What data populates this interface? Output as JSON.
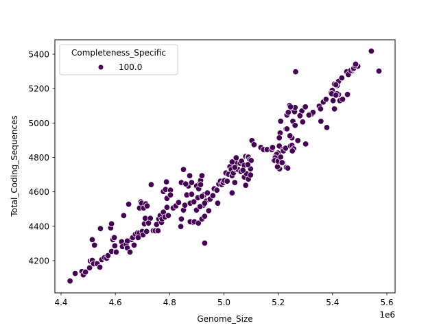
{
  "chart_data": {
    "type": "scatter",
    "title": "",
    "xlabel": "Genome_Size",
    "ylabel": "Total_Coding_Sequences",
    "x_offset_label": "1e6",
    "xlim": [
      4.38,
      5.63
    ],
    "ylim": [
      4065,
      5470
    ],
    "x_ticks": [
      4.4,
      4.6,
      4.8,
      5.0,
      5.2,
      5.4,
      5.6
    ],
    "x_tick_labels": [
      "4.4",
      "4.6",
      "4.8",
      "5.0",
      "5.2",
      "5.4",
      "5.6"
    ],
    "y_ticks": [
      4200,
      4400,
      4600,
      4800,
      5000,
      5200,
      5400
    ],
    "y_tick_labels": [
      "4200",
      "4400",
      "4600",
      "4800",
      "5000",
      "5200",
      "5400"
    ],
    "grid": false,
    "legend": {
      "title": "Completeness_Specific",
      "position": "upper left",
      "entries": [
        {
          "label": "100.0",
          "color": "#440154"
        }
      ]
    },
    "point_color": "#440154",
    "point_edge_color": "#ffffff",
    "series": [
      {
        "name": "100.0",
        "points": [
          [
            4.433,
            4082
          ],
          [
            4.452,
            4126
          ],
          [
            4.477,
            4137
          ],
          [
            4.482,
            4118
          ],
          [
            4.49,
            4134
          ],
          [
            4.505,
            4158
          ],
          [
            4.508,
            4198
          ],
          [
            4.515,
            4202
          ],
          [
            4.52,
            4182
          ],
          [
            4.533,
            4182
          ],
          [
            4.543,
            4162
          ],
          [
            4.515,
            4322
          ],
          [
            4.523,
            4290
          ],
          [
            4.545,
            4386
          ],
          [
            4.55,
            4206
          ],
          [
            4.56,
            4218
          ],
          [
            4.568,
            4214
          ],
          [
            4.573,
            4230
          ],
          [
            4.583,
            4390
          ],
          [
            4.586,
            4414
          ],
          [
            4.586,
            4254
          ],
          [
            4.591,
            4322
          ],
          [
            4.596,
            4334
          ],
          [
            4.598,
            4286
          ],
          [
            4.603,
            4250
          ],
          [
            4.623,
            4310
          ],
          [
            4.626,
            4282
          ],
          [
            4.631,
            4462
          ],
          [
            4.639,
            4294
          ],
          [
            4.644,
            4274
          ],
          [
            4.649,
            4528
          ],
          [
            4.654,
            4250
          ],
          [
            4.659,
            4322
          ],
          [
            4.664,
            4334
          ],
          [
            4.674,
            4354
          ],
          [
            4.682,
            4362
          ],
          [
            4.689,
            4506
          ],
          [
            4.689,
            4362
          ],
          [
            4.699,
            4370
          ],
          [
            4.702,
            4350
          ],
          [
            4.707,
            4414
          ],
          [
            4.71,
            4446
          ],
          [
            4.644,
            4314
          ],
          [
            4.669,
            4290
          ],
          [
            4.684,
            4334
          ],
          [
            4.694,
            4542
          ],
          [
            4.697,
            4534
          ],
          [
            4.704,
            4506
          ],
          [
            4.712,
            4530
          ],
          [
            4.717,
            4518
          ],
          [
            4.715,
            4370
          ],
          [
            4.729,
            4446
          ],
          [
            4.722,
            4418
          ],
          [
            4.732,
            4642
          ],
          [
            4.74,
            4374
          ],
          [
            4.747,
            4374
          ],
          [
            4.757,
            4374
          ],
          [
            4.752,
            4410
          ],
          [
            4.76,
            4442
          ],
          [
            4.765,
            4462
          ],
          [
            4.77,
            4422
          ],
          [
            4.772,
            4442
          ],
          [
            4.777,
            4482
          ],
          [
            4.783,
            4454
          ],
          [
            4.79,
            4510
          ],
          [
            4.795,
            4462
          ],
          [
            4.777,
            4602
          ],
          [
            4.785,
            4614
          ],
          [
            4.79,
            4562
          ],
          [
            4.788,
            4658
          ],
          [
            4.803,
            4610
          ],
          [
            4.803,
            4582
          ],
          [
            4.813,
            4506
          ],
          [
            4.823,
            4518
          ],
          [
            4.833,
            4538
          ],
          [
            4.843,
            4442
          ],
          [
            4.841,
            4398
          ],
          [
            4.843,
            4654
          ],
          [
            4.851,
            4494
          ],
          [
            4.856,
            4522
          ],
          [
            4.851,
            4730
          ],
          [
            4.863,
            4582
          ],
          [
            4.869,
            4634
          ],
          [
            4.874,
            4694
          ],
          [
            4.876,
            4534
          ],
          [
            4.881,
            4586
          ],
          [
            4.886,
            4422
          ],
          [
            4.876,
            4426
          ],
          [
            4.889,
            4542
          ],
          [
            4.899,
            4494
          ],
          [
            4.904,
            4566
          ],
          [
            4.909,
            4646
          ],
          [
            4.914,
            4666
          ],
          [
            4.919,
            4694
          ],
          [
            4.924,
            4522
          ],
          [
            4.929,
            4302
          ],
          [
            4.926,
            4582
          ],
          [
            4.934,
            4550
          ],
          [
            4.891,
            4426
          ],
          [
            4.906,
            4418
          ],
          [
            4.912,
            4514
          ],
          [
            4.919,
            4442
          ],
          [
            4.929,
            4458
          ],
          [
            4.934,
            4546
          ],
          [
            4.944,
            4490
          ],
          [
            4.859,
            4646
          ],
          [
            4.881,
            4654
          ],
          [
            4.899,
            4634
          ],
          [
            4.907,
            4618
          ],
          [
            4.914,
            4642
          ],
          [
            4.929,
            4534
          ],
          [
            4.919,
            4574
          ],
          [
            4.939,
            4594
          ],
          [
            4.949,
            4558
          ],
          [
            4.959,
            4578
          ],
          [
            4.964,
            4618
          ],
          [
            4.977,
            4534
          ],
          [
            4.974,
            4610
          ],
          [
            4.981,
            4646
          ],
          [
            4.987,
            4662
          ],
          [
            4.992,
            4642
          ],
          [
            4.997,
            4654
          ],
          [
            5.002,
            4666
          ],
          [
            5.007,
            4710
          ],
          [
            5.012,
            4662
          ],
          [
            5.017,
            4702
          ],
          [
            5.022,
            4746
          ],
          [
            5.027,
            4730
          ],
          [
            5.03,
            4694
          ],
          [
            5.03,
            4594
          ],
          [
            5.035,
            4710
          ],
          [
            5.04,
            4754
          ],
          [
            5.04,
            4654
          ],
          [
            5.045,
            4730
          ],
          [
            5.05,
            4766
          ],
          [
            5.052,
            4730
          ],
          [
            5.06,
            4766
          ],
          [
            5.063,
            4718
          ],
          [
            5.065,
            4778
          ],
          [
            5.075,
            4754
          ],
          [
            5.08,
            4806
          ],
          [
            5.088,
            4802
          ],
          [
            5.09,
            4802
          ],
          [
            5.095,
            4786
          ],
          [
            5.1,
            4782
          ],
          [
            5.103,
            4898
          ],
          [
            5.111,
            4874
          ],
          [
            5.136,
            4858
          ],
          [
            5.146,
            4846
          ],
          [
            5.159,
            4846
          ],
          [
            5.176,
            4846
          ],
          [
            5.184,
            4782
          ],
          [
            5.189,
            4806
          ],
          [
            5.199,
            4826
          ],
          [
            5.205,
            4734
          ],
          [
            5.08,
            4638
          ],
          [
            5.075,
            4686
          ],
          [
            5.083,
            4706
          ],
          [
            5.09,
            4674
          ],
          [
            5.098,
            4698
          ],
          [
            5.098,
            4734
          ],
          [
            5.088,
            4758
          ],
          [
            5.045,
            4798
          ],
          [
            5.03,
            4774
          ],
          [
            5.04,
            4742
          ],
          [
            5.07,
            4726
          ],
          [
            5.179,
            4858
          ],
          [
            5.194,
            4818
          ],
          [
            5.189,
            4798
          ],
          [
            5.204,
            4866
          ],
          [
            5.217,
            4846
          ],
          [
            5.219,
            4838
          ],
          [
            5.227,
            4854
          ],
          [
            5.245,
            4866
          ],
          [
            5.25,
            4870
          ],
          [
            5.257,
            4850
          ],
          [
            5.252,
            4838
          ],
          [
            5.25,
            4914
          ],
          [
            5.243,
            4926
          ],
          [
            5.272,
            4898
          ],
          [
            5.217,
            4770
          ],
          [
            5.187,
            4782
          ],
          [
            5.197,
            4746
          ],
          [
            5.199,
            4778
          ],
          [
            5.209,
            4802
          ],
          [
            5.214,
            4770
          ],
          [
            5.23,
            4742
          ],
          [
            5.235,
            4738
          ],
          [
            5.207,
            4942
          ],
          [
            5.229,
            4966
          ],
          [
            5.232,
            4966
          ],
          [
            5.204,
            4914
          ],
          [
            5.254,
            5010
          ],
          [
            5.262,
            4986
          ],
          [
            5.25,
            5082
          ],
          [
            5.29,
            5006
          ],
          [
            5.301,
            4878
          ],
          [
            5.325,
            5054
          ],
          [
            5.328,
            5062
          ],
          [
            5.351,
            5098
          ],
          [
            5.356,
            5082
          ],
          [
            5.366,
            5122
          ],
          [
            5.376,
            5138
          ],
          [
            5.379,
            4974
          ],
          [
            5.399,
            5190
          ],
          [
            5.409,
            5226
          ],
          [
            5.417,
            5218
          ],
          [
            5.422,
            5242
          ],
          [
            5.434,
            5262
          ],
          [
            5.452,
            5298
          ],
          [
            5.47,
            5302
          ],
          [
            5.458,
            5282
          ],
          [
            5.422,
            5166
          ],
          [
            5.467,
            5306
          ],
          [
            5.475,
            5314
          ],
          [
            5.478,
            5318
          ],
          [
            5.407,
            5226
          ],
          [
            5.394,
            5174
          ],
          [
            5.412,
            5222
          ],
          [
            5.416,
            5170
          ],
          [
            5.397,
            5170
          ],
          [
            5.407,
            5082
          ],
          [
            5.357,
            5010
          ],
          [
            5.427,
            5130
          ],
          [
            5.437,
            5138
          ],
          [
            5.412,
            5162
          ],
          [
            5.402,
            5130
          ],
          [
            5.455,
            5166
          ],
          [
            5.493,
            5330
          ],
          [
            5.543,
            5418
          ],
          [
            5.571,
            5302
          ],
          [
            5.483,
            5334
          ],
          [
            5.485,
            5342
          ],
          [
            5.264,
            5298
          ],
          [
            5.209,
            5010
          ],
          [
            5.232,
            5046
          ],
          [
            5.26,
            5066
          ],
          [
            5.262,
            5090
          ],
          [
            5.287,
            5070
          ],
          [
            5.3,
            5094
          ],
          [
            5.313,
            5046
          ],
          [
            5.237,
            5062
          ],
          [
            5.242,
            5102
          ],
          [
            5.245,
            5094
          ],
          [
            5.28,
            5042
          ]
        ]
      }
    ]
  }
}
